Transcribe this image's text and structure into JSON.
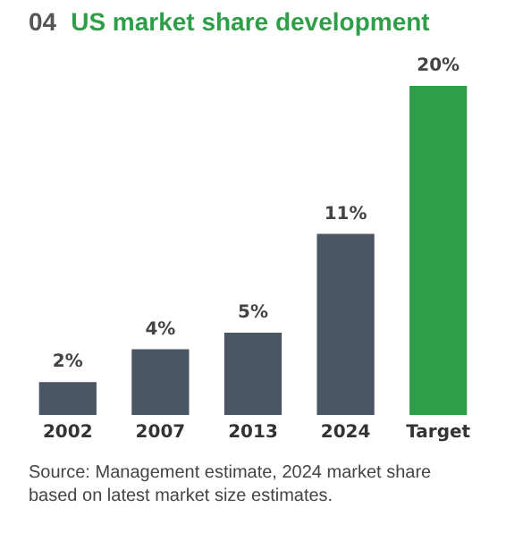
{
  "chart_data": {
    "type": "bar",
    "title": "04 US market share development",
    "categories": [
      "2002",
      "2007",
      "2013",
      "2024",
      "Target"
    ],
    "values": [
      2,
      4,
      5,
      11,
      20
    ],
    "colors": [
      "#4a5663",
      "#4a5663",
      "#4a5663",
      "#4a5663",
      "#2e9e48"
    ],
    "value_labels": [
      "2%",
      "4%",
      "5%",
      "11%",
      "20%"
    ],
    "grid": false,
    "legend": false,
    "annotations": [
      "Source: Management estimate, 2024 market share based on latest market size estimates."
    ]
  }
}
